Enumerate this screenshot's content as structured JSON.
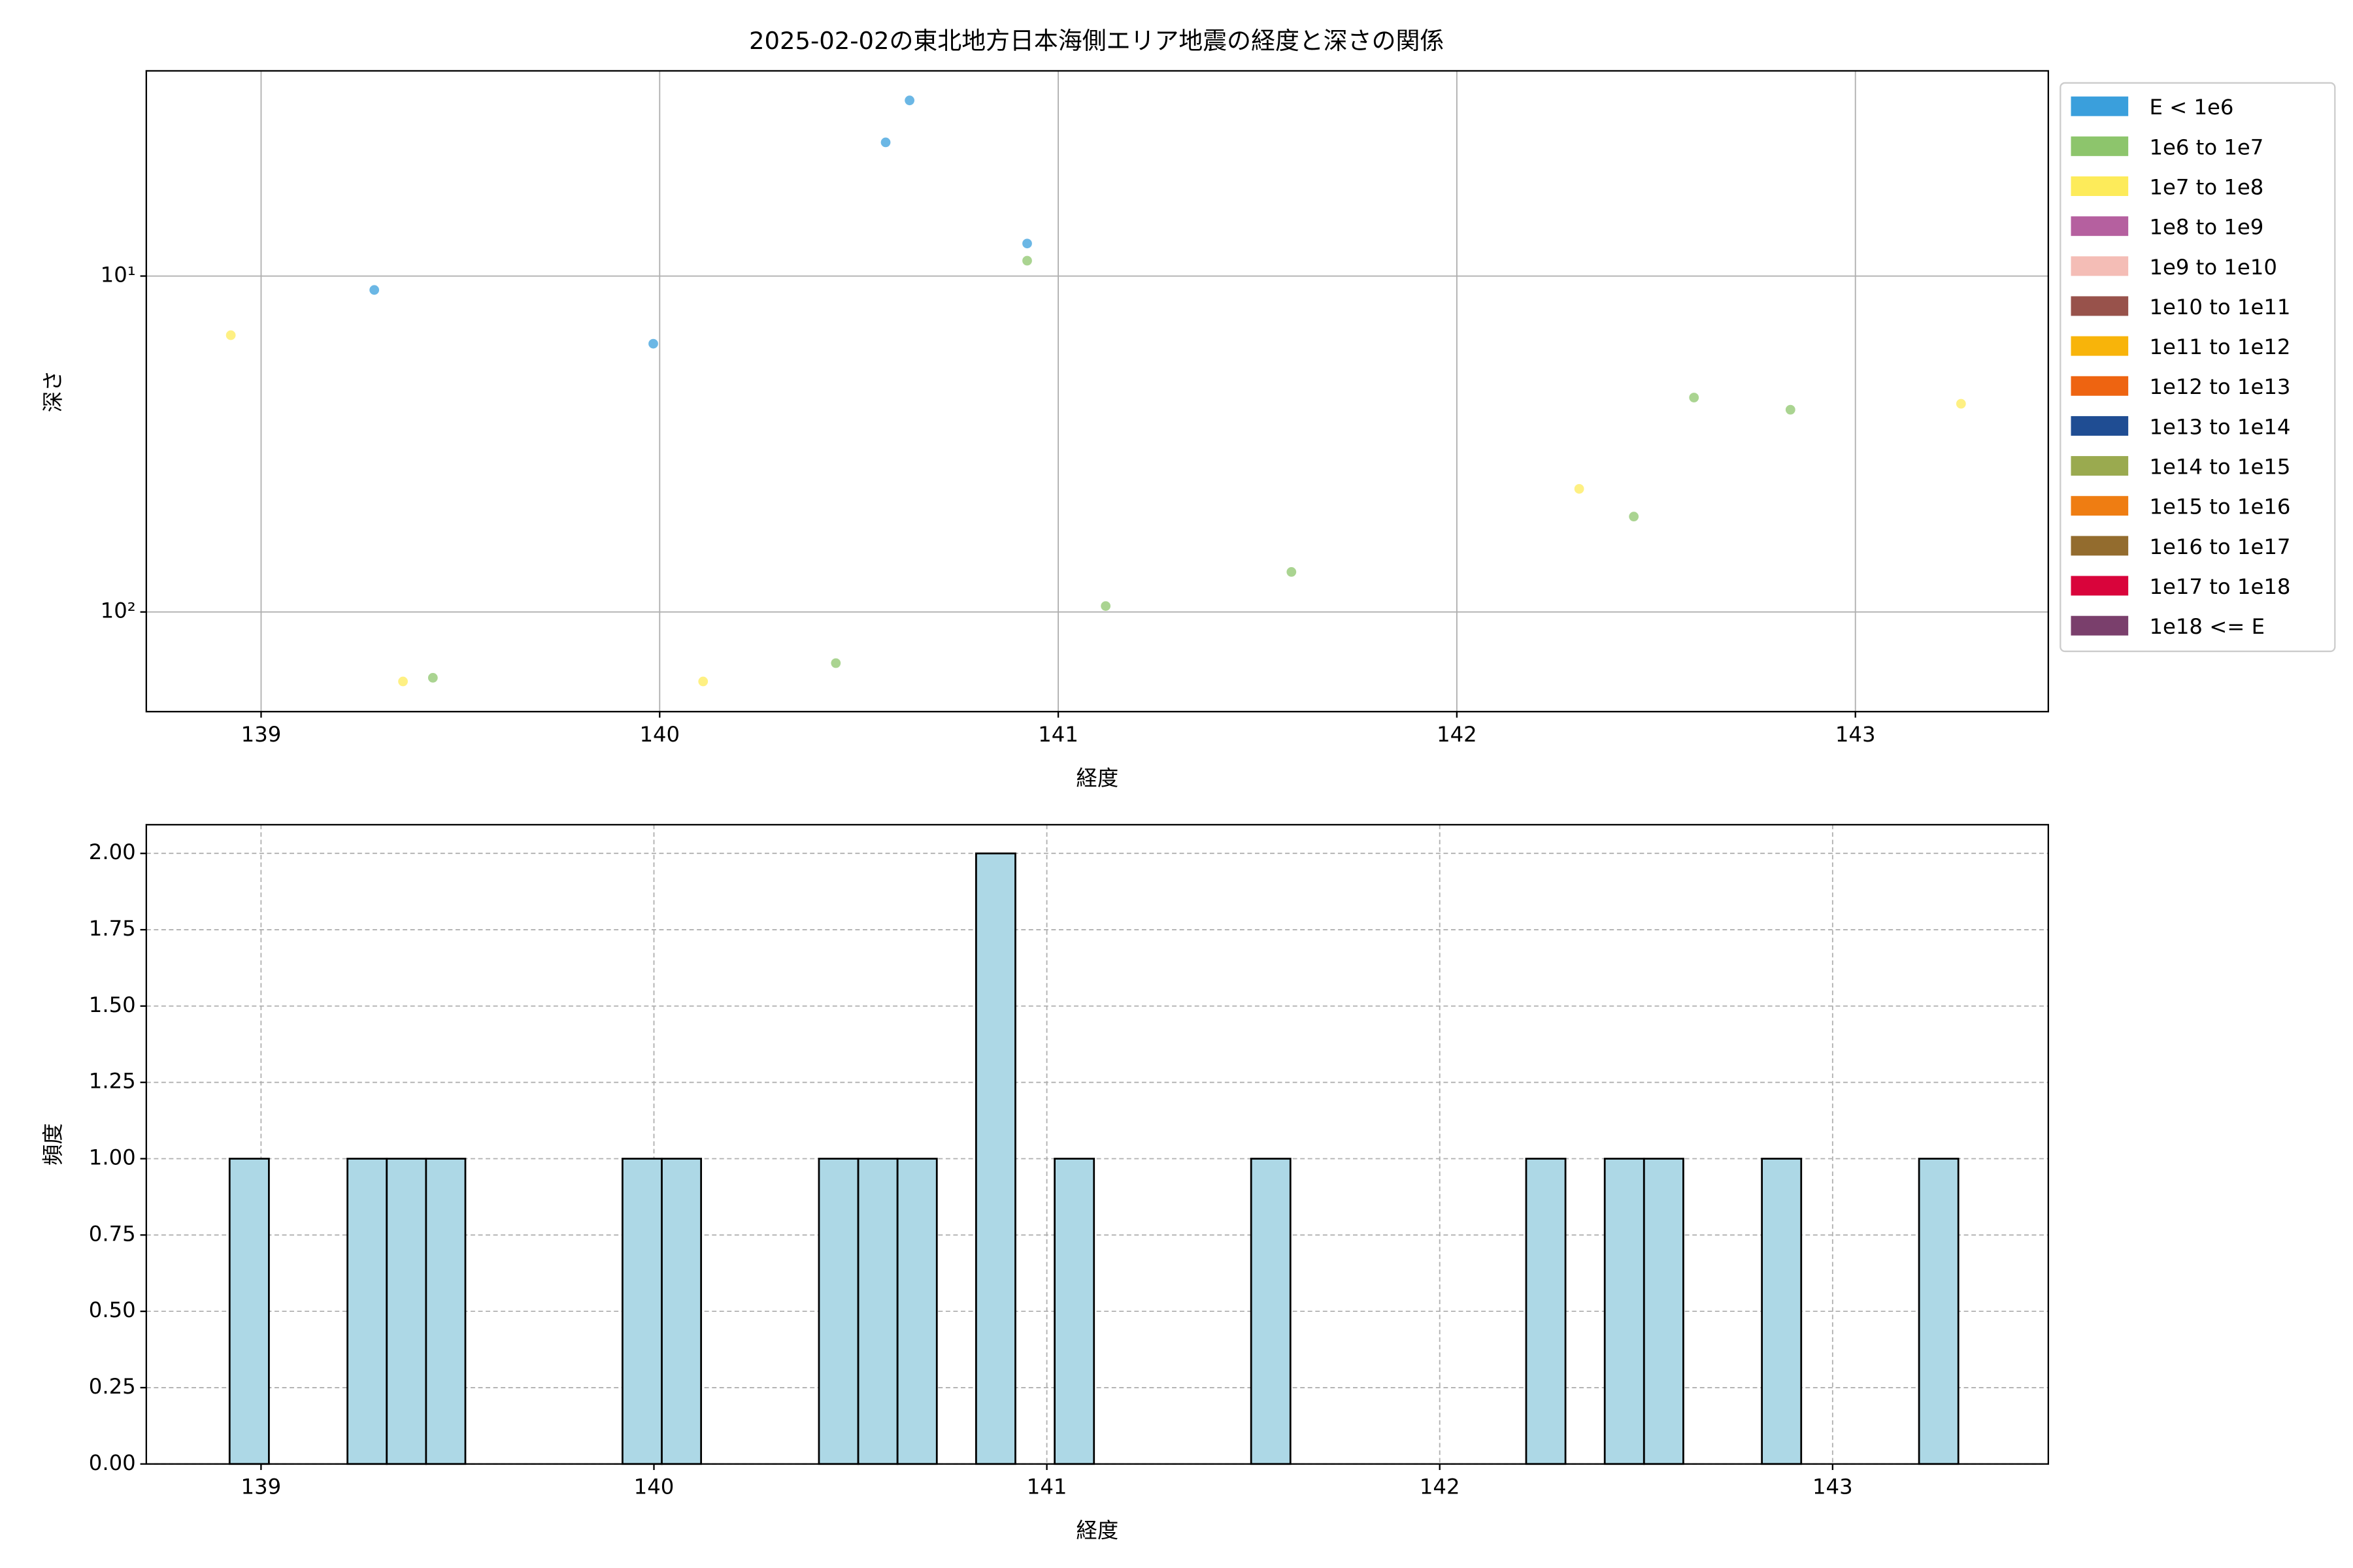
{
  "chart_data": [
    {
      "type": "scatter",
      "title": "2025-02-02の東北地方日本海側エリア地震の経度と深さの関係",
      "x_label": "経度",
      "y_label": "深さ",
      "xlim": [
        138.712,
        143.484
      ],
      "xticks": [
        139,
        140,
        141,
        142,
        143
      ],
      "ylim": [
        2.45,
        198
      ],
      "yscale": "log",
      "yinverted": true,
      "yticks": [
        {
          "value": 10,
          "label": "10¹"
        },
        {
          "value": 100,
          "label": "10²"
        }
      ],
      "grid": true,
      "grid_linestyle": "solid",
      "legend": "outside right",
      "series": [
        {
          "name": "E < 1e6",
          "color": "#3a9fdc",
          "x": [
            139.284,
            139.984,
            140.567,
            140.627,
            140.922
          ],
          "values": [
            11.0,
            15.9,
            4.0,
            3.0,
            8.0
          ]
        },
        {
          "name": "1e6 to 1e7",
          "color": "#8dc56c",
          "x": [
            139.431,
            140.442,
            140.922,
            141.119,
            141.585,
            142.444,
            142.595,
            142.837
          ],
          "values": [
            157,
            142,
            9.0,
            96,
            76,
            52,
            23,
            25
          ]
        },
        {
          "name": "1e7 to 1e8",
          "color": "#fdeb5a",
          "x": [
            138.924,
            139.356,
            140.109,
            142.307,
            143.265
          ],
          "values": [
            15.0,
            161,
            161,
            43,
            24
          ]
        },
        {
          "name": "1e8 to 1e9",
          "color": "#b5609f",
          "x": [],
          "values": []
        },
        {
          "name": "1e9 to 1e10",
          "color": "#f4bdb6",
          "x": [],
          "values": []
        },
        {
          "name": "1e10 to 1e11",
          "color": "#98524b",
          "x": [],
          "values": []
        },
        {
          "name": "1e11 to 1e12",
          "color": "#f8b40a",
          "x": [],
          "values": []
        },
        {
          "name": "1e12 to 1e13",
          "color": "#ee6411",
          "x": [],
          "values": []
        },
        {
          "name": "1e13 to 1e14",
          "color": "#1f4d93",
          "x": [],
          "values": []
        },
        {
          "name": "1e14 to 1e15",
          "color": "#9aaa4f",
          "x": [],
          "values": []
        },
        {
          "name": "1e15 to 1e16",
          "color": "#ef7d12",
          "x": [],
          "values": []
        },
        {
          "name": "1e16 to 1e17",
          "color": "#936c2e",
          "x": [],
          "values": []
        },
        {
          "name": "1e17 to 1e18",
          "color": "#d9043b",
          "x": [],
          "values": []
        },
        {
          "name": "1e18 <= E",
          "color": "#7a3f6c",
          "x": [],
          "values": []
        }
      ]
    },
    {
      "type": "histogram",
      "x_label": "経度",
      "y_label": "頻度",
      "xlim": [
        138.708,
        143.549
      ],
      "xticks": [
        139,
        140,
        141,
        142,
        143
      ],
      "ylim": [
        0,
        2.094
      ],
      "yticks": [
        {
          "value": 0,
          "label": "0.00"
        },
        {
          "value": 0.25,
          "label": "0.25"
        },
        {
          "value": 0.5,
          "label": "0.50"
        },
        {
          "value": 0.75,
          "label": "0.75"
        },
        {
          "value": 1,
          "label": "1.00"
        },
        {
          "value": 1.25,
          "label": "1.25"
        },
        {
          "value": 1.5,
          "label": "1.50"
        },
        {
          "value": 1.75,
          "label": "1.75"
        },
        {
          "value": 2,
          "label": "2.00"
        }
      ],
      "grid": true,
      "grid_linestyle": "dashed",
      "color": "#add8e6",
      "edgecolor": "#000000",
      "bins": [
        138.92,
        139.02,
        139.12,
        139.22,
        139.32,
        139.42,
        139.52,
        139.62,
        139.72,
        139.82,
        139.92,
        140.02,
        140.12,
        140.22,
        140.32,
        140.42,
        140.52,
        140.62,
        140.72,
        140.82,
        140.92,
        141.02,
        141.12,
        141.22,
        141.32,
        141.42,
        141.52,
        141.62,
        141.72,
        141.82,
        141.92,
        142.02,
        142.12,
        142.22,
        142.32,
        142.42,
        142.52,
        142.62,
        142.72,
        142.82,
        142.92,
        143.02,
        143.12,
        143.22,
        143.32
      ],
      "values": [
        1,
        0,
        0,
        1,
        1,
        1,
        0,
        0,
        0,
        0,
        1,
        1,
        0,
        0,
        0,
        1,
        1,
        1,
        0,
        2,
        0,
        1,
        0,
        0,
        0,
        0,
        1,
        0,
        0,
        0,
        0,
        0,
        0,
        1,
        0,
        1,
        1,
        0,
        0,
        1,
        0,
        0,
        0,
        1
      ]
    }
  ]
}
